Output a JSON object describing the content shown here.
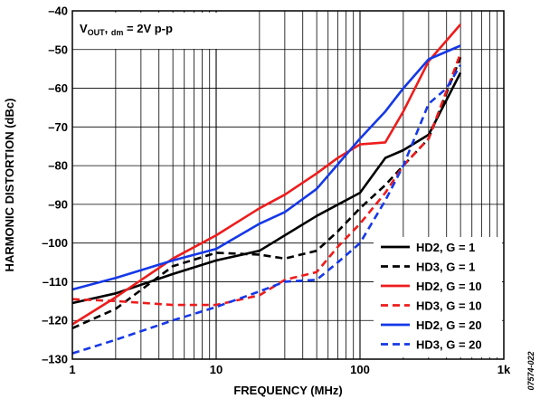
{
  "chart_data": {
    "type": "line",
    "xlabel": "FREQUENCY (MHz)",
    "ylabel": "HARMONIC DISTORTION (dBc)",
    "xscale": "log",
    "xlim": [
      1,
      1000
    ],
    "ylim": [
      -130,
      -40
    ],
    "x_tick_labels": [
      {
        "value": 1,
        "label": "1"
      },
      {
        "value": 10,
        "label": "10"
      },
      {
        "value": 100,
        "label": "100"
      },
      {
        "value": 1000,
        "label": "1k"
      }
    ],
    "y_ticks": [
      -130,
      -120,
      -110,
      -100,
      -90,
      -80,
      -70,
      -60,
      -50,
      -40
    ],
    "y_tick_labels": [
      "–130",
      "–120",
      "–110",
      "–100",
      "–90",
      "–80",
      "–70",
      "–60",
      "–50",
      "–40"
    ],
    "grid": true,
    "legend_position": "bottom-right",
    "annotation": {
      "main": "V",
      "sub1": "OUT",
      "sep": ", ",
      "sub2": "dm",
      "rest": " = 2V p-p"
    },
    "figure_code": "07574-022",
    "series": [
      {
        "name": "HD2, G = 1",
        "color": "#000000",
        "dash": "solid",
        "x": [
          1,
          2,
          5,
          10,
          20,
          50,
          100,
          150,
          200,
          300,
          500
        ],
        "y": [
          -115.5,
          -113,
          -108,
          -104.5,
          -102,
          -93,
          -87,
          -78,
          -76,
          -72,
          -56
        ]
      },
      {
        "name": "HD3, G = 1",
        "color": "#000000",
        "dash": "dashed",
        "x": [
          1,
          2,
          5,
          10,
          20,
          30,
          50,
          70,
          100,
          150,
          200,
          300,
          500
        ],
        "y": [
          -122,
          -117,
          -106,
          -102.5,
          -103,
          -104,
          -102,
          -97,
          -91,
          -85,
          -80,
          -73,
          -52
        ]
      },
      {
        "name": "HD2, G = 10",
        "color": "#ee1c1c",
        "dash": "solid",
        "x": [
          1,
          2,
          5,
          10,
          20,
          30,
          50,
          70,
          100,
          150,
          200,
          300,
          500
        ],
        "y": [
          -121,
          -114,
          -104,
          -98,
          -91,
          -87.5,
          -82,
          -78,
          -74.5,
          -74,
          -66,
          -53,
          -43.5
        ]
      },
      {
        "name": "HD3, G = 10",
        "color": "#ee1c1c",
        "dash": "dashed",
        "x": [
          1,
          2,
          5,
          10,
          20,
          30,
          50,
          70,
          100,
          150,
          200,
          300,
          500
        ],
        "y": [
          -114.5,
          -115,
          -116,
          -116,
          -113.5,
          -109.5,
          -107.5,
          -101,
          -95,
          -87,
          -80,
          -73,
          -51
        ]
      },
      {
        "name": "HD2, G = 20",
        "color": "#1538e8",
        "dash": "solid",
        "x": [
          1,
          2,
          5,
          10,
          20,
          30,
          50,
          100,
          150,
          200,
          300,
          500
        ],
        "y": [
          -112,
          -109,
          -104.5,
          -101.5,
          -95,
          -92,
          -86,
          -73,
          -66,
          -60,
          -52.5,
          -49
        ]
      },
      {
        "name": "HD3, G = 20",
        "color": "#1538e8",
        "dash": "dashed",
        "x": [
          1,
          2,
          5,
          10,
          20,
          30,
          50,
          70,
          100,
          150,
          200,
          300,
          400,
          500
        ],
        "y": [
          -128.5,
          -125,
          -120,
          -116.5,
          -112.5,
          -110,
          -109.5,
          -105,
          -100,
          -89,
          -80,
          -64,
          -60,
          -54
        ]
      }
    ]
  }
}
